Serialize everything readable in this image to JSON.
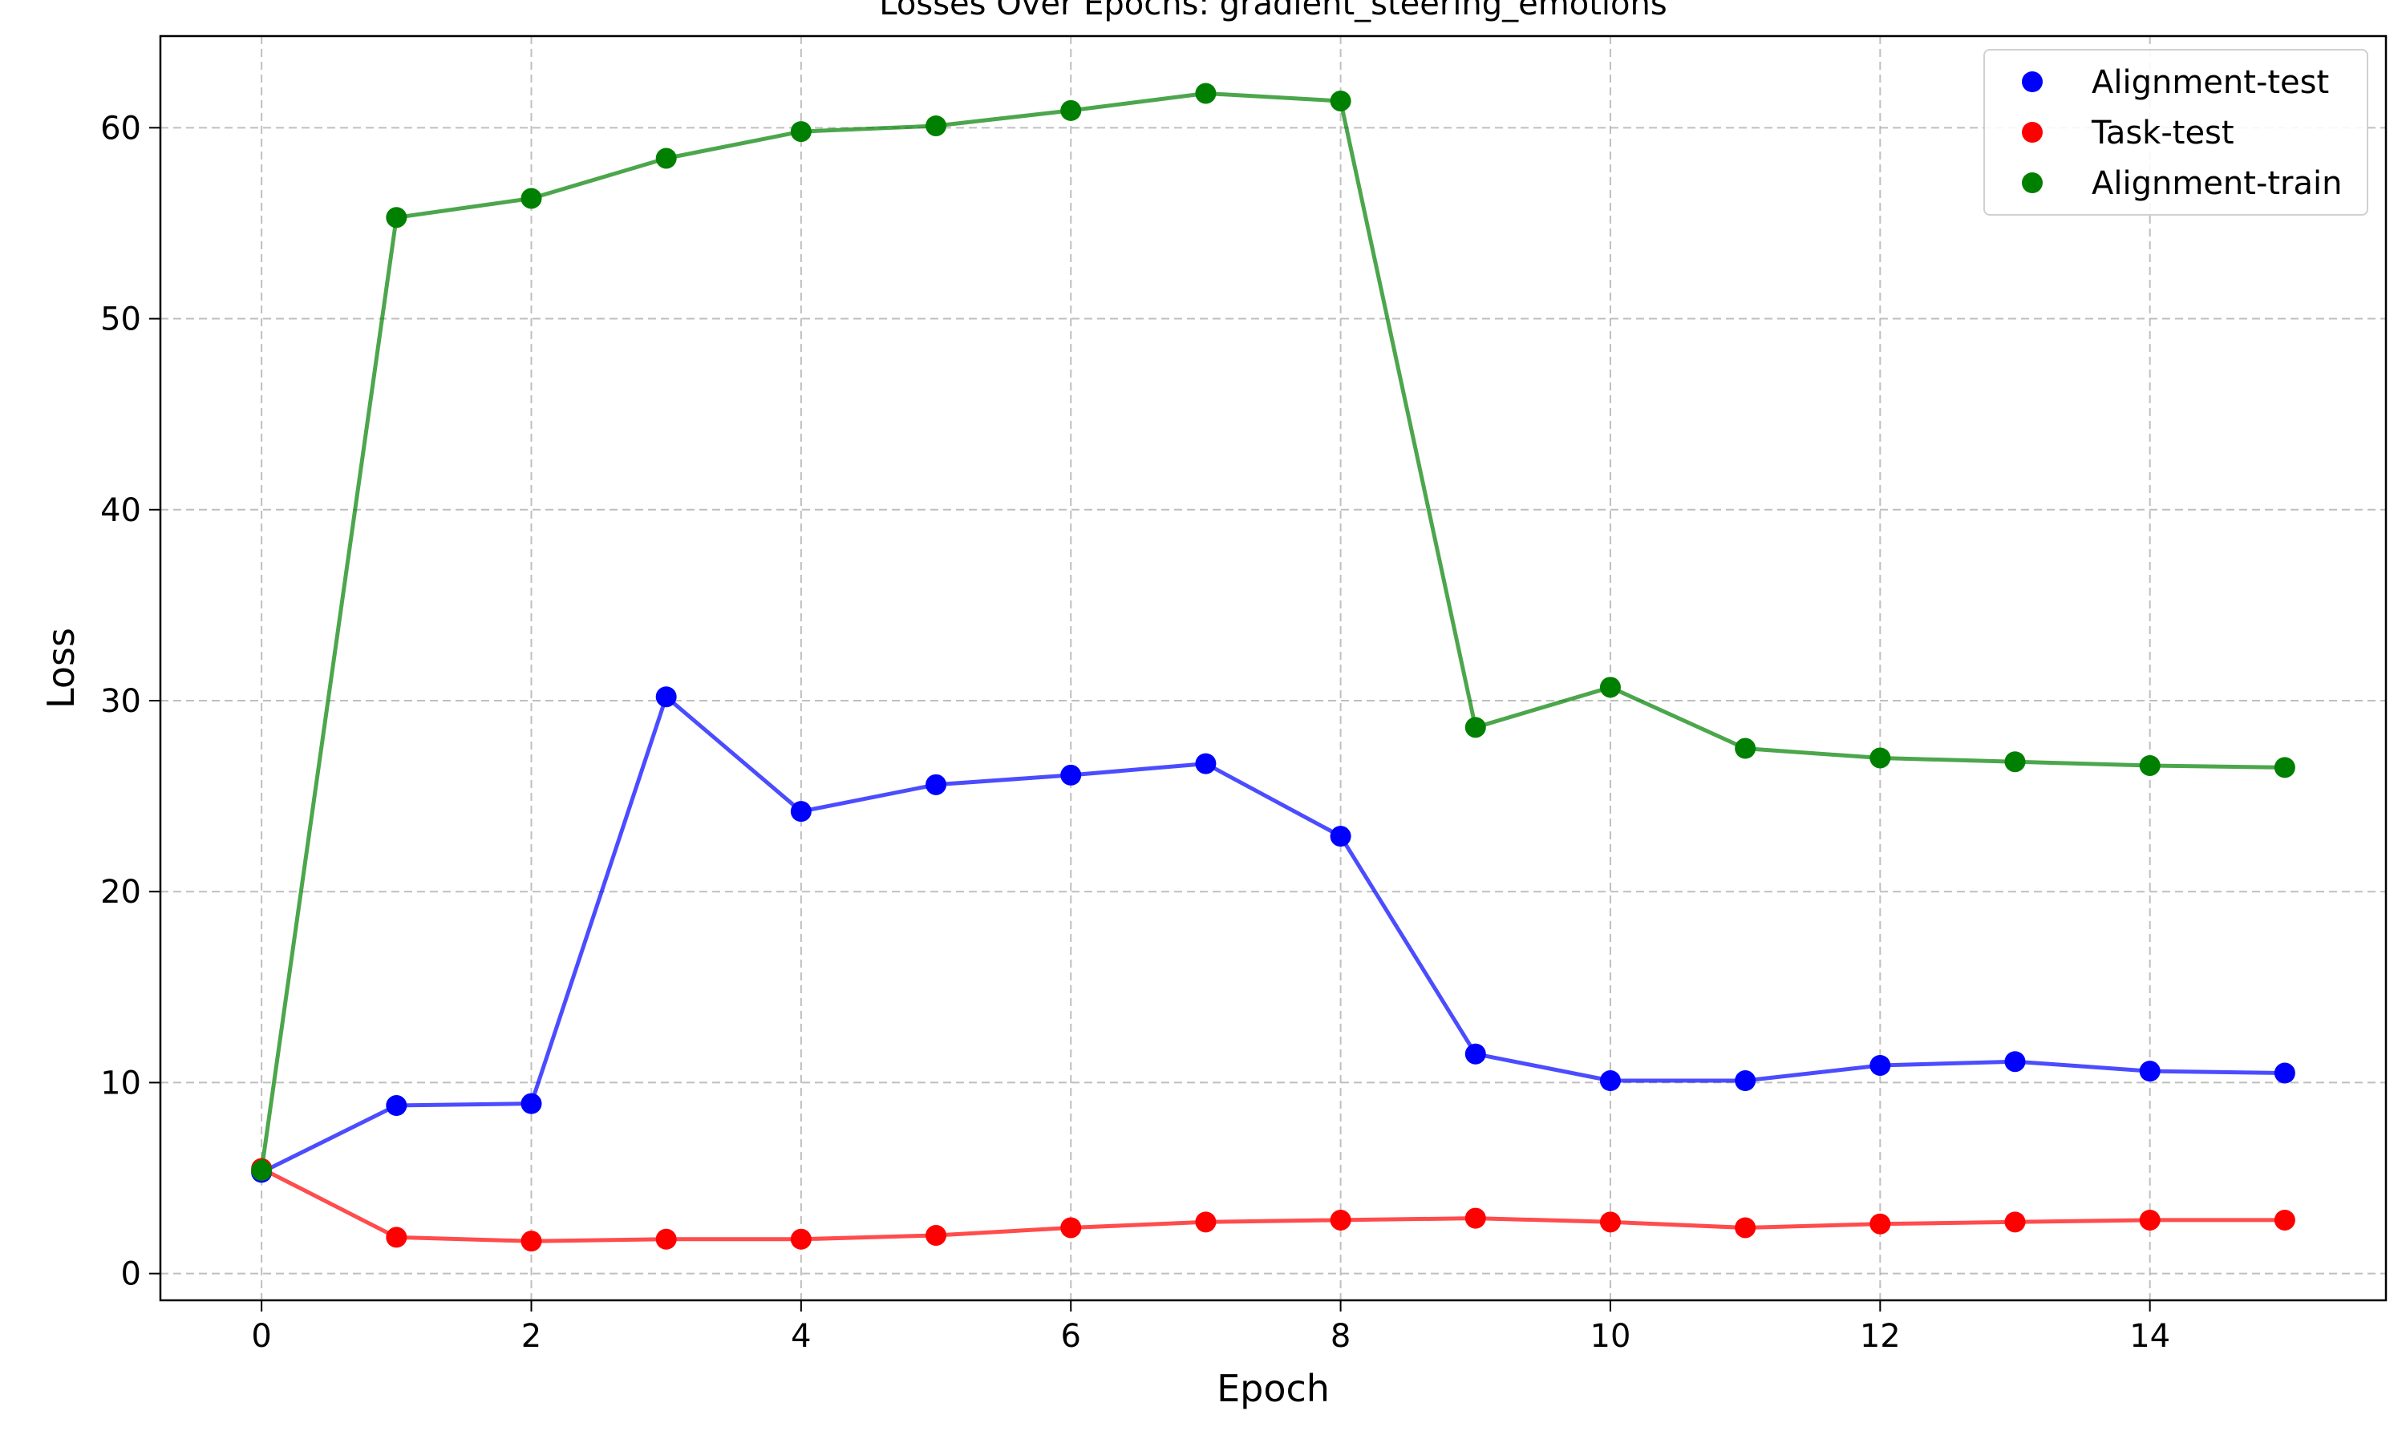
{
  "chart_data": {
    "type": "line",
    "title": "Losses Over Epochs: gradient_steering_emotions",
    "xlabel": "Epoch",
    "ylabel": "Loss",
    "xlim": [
      -0.75,
      15.75
    ],
    "ylim": [
      -1.4,
      64.8
    ],
    "xticks": [
      0,
      2,
      4,
      6,
      8,
      10,
      12,
      14
    ],
    "yticks": [
      0,
      10,
      20,
      30,
      40,
      50,
      60
    ],
    "grid": true,
    "legend_position": "top-right",
    "x": [
      0,
      1,
      2,
      3,
      4,
      5,
      6,
      7,
      8,
      9,
      10,
      11,
      12,
      13,
      14,
      15
    ],
    "series": [
      {
        "name": "Alignment-test",
        "color": "#0000ff",
        "values": [
          5.3,
          8.8,
          8.9,
          30.2,
          24.2,
          25.6,
          26.1,
          26.7,
          22.9,
          11.5,
          10.1,
          10.1,
          10.9,
          11.1,
          10.6,
          10.5
        ]
      },
      {
        "name": "Task-test",
        "color": "#ff0000",
        "values": [
          5.5,
          1.9,
          1.7,
          1.8,
          1.8,
          2.0,
          2.4,
          2.7,
          2.8,
          2.9,
          2.7,
          2.4,
          2.6,
          2.7,
          2.8,
          2.8
        ]
      },
      {
        "name": "Alignment-train",
        "color": "#008000",
        "values": [
          5.4,
          55.3,
          56.3,
          58.4,
          59.8,
          60.1,
          60.9,
          61.8,
          61.4,
          28.6,
          30.7,
          27.5,
          27.0,
          26.8,
          26.6,
          26.5
        ]
      }
    ]
  }
}
